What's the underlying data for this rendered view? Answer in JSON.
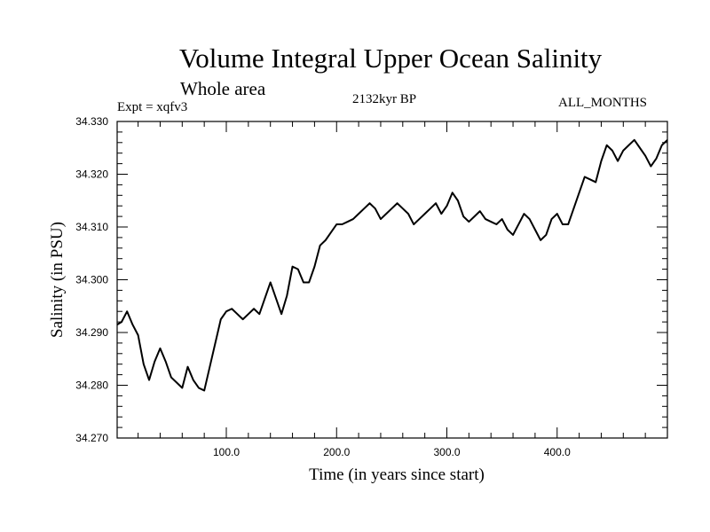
{
  "chart_data": {
    "type": "line",
    "title": "Volume Integral Upper Ocean Salinity",
    "subtitle": "Whole area",
    "experiment": "Expt = xqfv3",
    "period": "2132kyr BP",
    "months": "ALL_MONTHS",
    "xlabel": "Time (in years since start)",
    "ylabel": "Salinity (in PSU)",
    "xlim": [
      1,
      500
    ],
    "ylim": [
      34.27,
      34.33
    ],
    "xticks": [
      100,
      200,
      300,
      400
    ],
    "xtick_labels": [
      "100.0",
      "200.0",
      "300.0",
      "400.0"
    ],
    "yticks": [
      34.27,
      34.28,
      34.29,
      34.3,
      34.31,
      34.32,
      34.33
    ],
    "ytick_labels": [
      "34.270",
      "34.280",
      "34.290",
      "34.300",
      "34.310",
      "34.320",
      "34.330"
    ],
    "grid": false,
    "series": [
      {
        "name": "Salinity",
        "color": "#000000",
        "x": [
          1,
          5,
          10,
          15,
          20,
          25,
          30,
          35,
          40,
          45,
          50,
          55,
          60,
          65,
          70,
          75,
          80,
          85,
          90,
          95,
          100,
          105,
          110,
          115,
          120,
          125,
          130,
          135,
          140,
          145,
          150,
          155,
          160,
          165,
          170,
          175,
          180,
          185,
          190,
          195,
          200,
          205,
          210,
          215,
          220,
          225,
          230,
          235,
          240,
          245,
          250,
          255,
          260,
          265,
          270,
          275,
          280,
          285,
          290,
          295,
          300,
          305,
          310,
          315,
          320,
          325,
          330,
          335,
          340,
          345,
          350,
          355,
          360,
          365,
          370,
          375,
          380,
          385,
          390,
          395,
          400,
          405,
          410,
          415,
          420,
          425,
          430,
          435,
          440,
          445,
          450,
          455,
          460,
          465,
          470,
          475,
          480,
          485,
          490,
          495,
          500
        ],
        "y": [
          34.2915,
          34.292,
          34.294,
          34.2915,
          34.2895,
          34.284,
          34.281,
          34.2845,
          34.287,
          34.2845,
          34.2815,
          34.2805,
          34.2795,
          34.2835,
          34.281,
          34.2795,
          34.279,
          34.2835,
          34.288,
          34.2925,
          34.294,
          34.2945,
          34.2935,
          34.2925,
          34.2935,
          34.2945,
          34.2935,
          34.2965,
          34.2995,
          34.2965,
          34.2935,
          34.297,
          34.3025,
          34.302,
          34.2995,
          34.2995,
          34.3025,
          34.3065,
          34.3075,
          34.309,
          34.3105,
          34.3105,
          34.311,
          34.3115,
          34.3125,
          34.3135,
          34.3145,
          34.3135,
          34.3115,
          34.3125,
          34.3135,
          34.3145,
          34.3135,
          34.3125,
          34.3105,
          34.3115,
          34.3125,
          34.3135,
          34.3145,
          34.3125,
          34.314,
          34.3165,
          34.315,
          34.312,
          34.311,
          34.312,
          34.313,
          34.3115,
          34.311,
          34.3105,
          34.3115,
          34.3095,
          34.3085,
          34.3105,
          34.3125,
          34.3115,
          34.3095,
          34.3075,
          34.3085,
          34.3115,
          34.3125,
          34.3105,
          34.3105,
          34.3135,
          34.3165,
          34.3195,
          34.319,
          34.3185,
          34.3225,
          34.3255,
          34.3245,
          34.3225,
          34.3245,
          34.3255,
          34.3265,
          34.325,
          34.3235,
          34.3215,
          34.323,
          34.3255,
          34.3265
        ]
      }
    ]
  }
}
